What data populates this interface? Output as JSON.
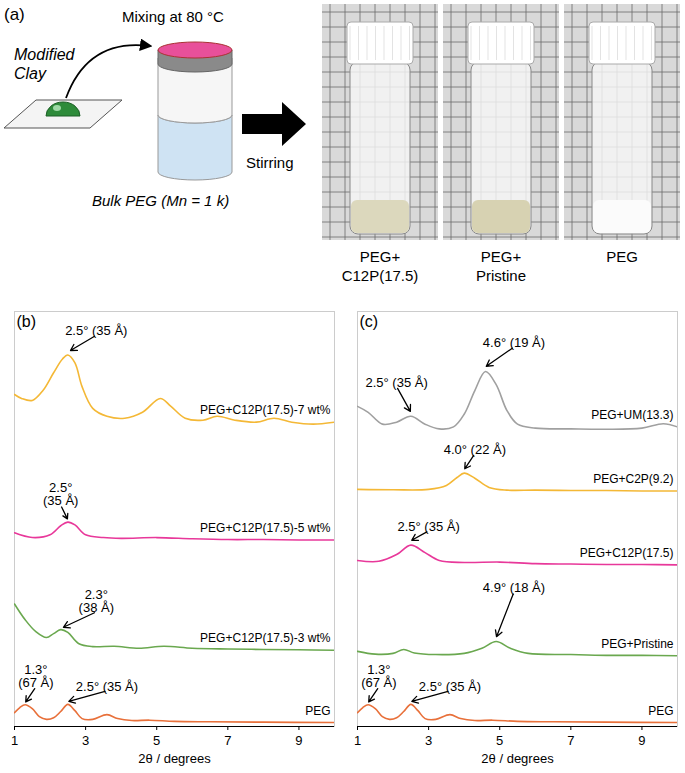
{
  "schematic": {
    "panel": "(a)",
    "clay": "Modified\nClay",
    "mixing": "Mixing at 80 °C",
    "bulk": "Bulk PEG (Mn = 1 k)",
    "stirring": "Stirring",
    "samples": [
      "PEG+\nC12P(17.5)",
      "PEG+\nPristine",
      "PEG"
    ]
  },
  "chart_data": [
    {
      "type": "line",
      "panel": "(b)",
      "xlabel": "2θ / degrees",
      "xlim": [
        1,
        10
      ],
      "xticks": [
        1,
        3,
        5,
        7,
        9
      ],
      "ylim": [
        0,
        105
      ],
      "tick_labels": "x",
      "series": [
        {
          "name": "PEG",
          "color": "#e8703a",
          "x": [
            1.0,
            1.15,
            1.3,
            1.5,
            1.7,
            1.9,
            2.1,
            2.3,
            2.5,
            2.7,
            2.9,
            3.2,
            3.6,
            3.9,
            4.3,
            4.8,
            5.5,
            6.5,
            8,
            10
          ],
          "values": [
            3.5,
            4.8,
            5.5,
            4.5,
            2.5,
            1.8,
            2.2,
            3.8,
            5.6,
            4.0,
            2.0,
            1.8,
            3.0,
            2.0,
            1.5,
            1.6,
            1.3,
            1.2,
            1.1,
            1.0
          ]
        },
        {
          "name": "PEG+C12P(17.5)-3 wt%",
          "color": "#6aa84f",
          "x": [
            1.0,
            1.3,
            1.6,
            1.9,
            2.1,
            2.3,
            2.5,
            2.8,
            3.2,
            3.8,
            4.5,
            5.2,
            6,
            7,
            8,
            9,
            10
          ],
          "values": [
            31,
            27,
            24,
            22.5,
            23.5,
            24.5,
            23.8,
            21,
            20.2,
            20.3,
            19.8,
            20.3,
            19.8,
            19.6,
            19.5,
            19.4,
            19.3
          ]
        },
        {
          "name": "PEG+C12P(17.5)-5 wt%",
          "color": "#e8389a",
          "x": [
            1,
            1.5,
            2.0,
            2.3,
            2.5,
            2.7,
            3.0,
            3.5,
            4,
            5,
            6,
            7,
            8,
            9,
            10
          ],
          "values": [
            49,
            47.8,
            48.5,
            50.8,
            51.7,
            51,
            48.5,
            47.8,
            47.6,
            47.8,
            47.5,
            47.3,
            47.3,
            47.2,
            47.2
          ]
        },
        {
          "name": "PEG+C12P(17.5)-7 wt%",
          "color": "#f4b836",
          "x": [
            1,
            1.2,
            1.5,
            1.8,
            2.1,
            2.35,
            2.5,
            2.7,
            2.9,
            3.2,
            3.6,
            4.1,
            4.6,
            5.1,
            5.4,
            5.8,
            6.3,
            6.7,
            7.2,
            7.8,
            8.3,
            8.8,
            9.4,
            10
          ],
          "values": [
            84,
            83,
            82.5,
            85,
            89.5,
            93,
            94,
            92,
            86,
            80.5,
            78.5,
            78,
            79.5,
            83,
            81,
            78,
            77.5,
            78.5,
            77.5,
            77,
            78,
            77,
            76.5,
            77
          ]
        }
      ],
      "annotations": [
        {
          "text": "2.5° (35 Å)",
          "x": 2.55,
          "y": 95,
          "label_x": 3.3,
          "label_y": 99
        },
        {
          "text": "2.5°\n(35 Å)",
          "x": 2.5,
          "y": 52.3,
          "label_x": 2.3,
          "label_y": 56
        },
        {
          "text": "2.3°\n(38 Å)",
          "x": 2.35,
          "y": 25,
          "label_x": 3.3,
          "label_y": 29
        },
        {
          "text": "1.3°\n(67 Å)",
          "x": 1.3,
          "y": 6,
          "label_x": 1.6,
          "label_y": 10
        },
        {
          "text": "2.5° (35 Å)",
          "x": 2.5,
          "y": 6.3,
          "label_x": 3.6,
          "label_y": 9
        }
      ]
    },
    {
      "type": "line",
      "panel": "(c)",
      "xlabel": "2θ / degrees",
      "xlim": [
        1,
        10
      ],
      "xticks": [
        1,
        3,
        5,
        7,
        9
      ],
      "ylim": [
        0,
        105
      ],
      "tick_labels": "x",
      "series": [
        {
          "name": "PEG",
          "color": "#e8703a",
          "x": [
            1.0,
            1.15,
            1.3,
            1.5,
            1.7,
            1.9,
            2.1,
            2.3,
            2.5,
            2.7,
            2.9,
            3.2,
            3.6,
            3.9,
            4.3,
            4.8,
            5.5,
            6.5,
            8,
            10
          ],
          "values": [
            3.5,
            4.8,
            5.5,
            4.5,
            2.5,
            1.8,
            2.2,
            3.8,
            5.6,
            4.0,
            2.0,
            1.8,
            3.0,
            2.0,
            1.5,
            1.6,
            1.3,
            1.2,
            1.1,
            1.0
          ]
        },
        {
          "name": "PEG+Pristine",
          "color": "#6aa84f",
          "x": [
            1,
            1.5,
            2,
            2.3,
            2.6,
            3.2,
            4,
            4.5,
            4.9,
            5.3,
            5.8,
            7,
            8,
            9,
            10
          ],
          "values": [
            19,
            18.3,
            18.5,
            19.5,
            18.6,
            18.2,
            18.5,
            19.8,
            21.5,
            19.8,
            18.5,
            18.2,
            18,
            18,
            17.9
          ]
        },
        {
          "name": "PEG+C12P(17.5)",
          "color": "#e8389a",
          "x": [
            1,
            1.6,
            2.1,
            2.5,
            2.9,
            3.3,
            4,
            5,
            6,
            7,
            8,
            9,
            10
          ],
          "values": [
            42,
            41.8,
            43.5,
            45.9,
            44,
            42,
            41.5,
            41.6,
            41.2,
            41.1,
            41.0,
            41,
            40.9
          ]
        },
        {
          "name": "PEG+C2P(9.2)",
          "color": "#f4b836",
          "x": [
            1,
            2,
            3,
            3.5,
            3.8,
            4,
            4.3,
            4.7,
            5.2,
            6,
            7,
            8,
            9,
            10
          ],
          "values": [
            60,
            59.9,
            60,
            61,
            63,
            64.1,
            62.8,
            60.5,
            59.8,
            59.8,
            59.7,
            59.7,
            59.6,
            59.6
          ]
        },
        {
          "name": "PEG+UM(13.3)",
          "color": "#a0a0a0",
          "x": [
            1,
            1.3,
            1.7,
            2.1,
            2.5,
            2.9,
            3.3,
            3.7,
            4.0,
            4.3,
            4.6,
            4.9,
            5.2,
            5.5,
            6,
            7,
            8,
            9,
            9.6,
            10
          ],
          "values": [
            81,
            79.5,
            76.5,
            77,
            78.5,
            76.5,
            75.3,
            75.8,
            79,
            85,
            89.8,
            86.5,
            80,
            76.5,
            75.5,
            75.3,
            75.2,
            75.5,
            76.6,
            75.8
          ]
        }
      ],
      "annotations": [
        {
          "text": "4.6° (19 Å)",
          "x": 4.6,
          "y": 91,
          "label_x": 5.4,
          "label_y": 96
        },
        {
          "text": "2.5° (35 Å)",
          "x": 2.5,
          "y": 79.5,
          "label_x": 2.1,
          "label_y": 86
        },
        {
          "text": "4.0° (22 Å)",
          "x": 4.0,
          "y": 65,
          "label_x": 4.3,
          "label_y": 69
        },
        {
          "text": "2.5° (35 Å)",
          "x": 2.5,
          "y": 47,
          "label_x": 3.0,
          "label_y": 49.5
        },
        {
          "text": "4.9° (18 Å)",
          "x": 4.9,
          "y": 22.5,
          "label_x": 5.4,
          "label_y": 34
        },
        {
          "text": "1.3°\n(67 Å)",
          "x": 1.3,
          "y": 6,
          "label_x": 1.6,
          "label_y": 10
        },
        {
          "text": "2.5° (35 Å)",
          "x": 2.5,
          "y": 6.3,
          "label_x": 3.6,
          "label_y": 9
        }
      ]
    }
  ]
}
